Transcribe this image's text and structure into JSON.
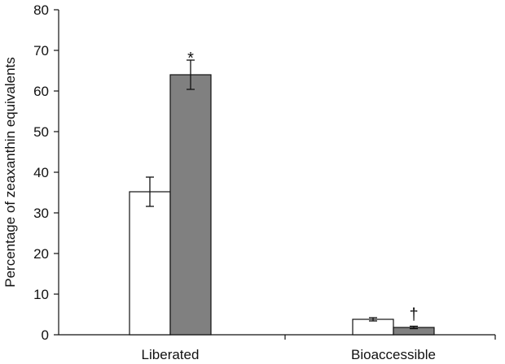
{
  "chart_data": {
    "type": "bar",
    "title": "",
    "xlabel": "",
    "ylabel": "Percentage of zeaxanthin equivalents",
    "ylim": [
      0,
      80
    ],
    "yticks": [
      0,
      10,
      20,
      30,
      40,
      50,
      60,
      70,
      80
    ],
    "grid": false,
    "legend": "none",
    "categories": [
      "Liberated",
      "Bioaccessible"
    ],
    "series": [
      {
        "fill": "#ffffff",
        "values": [
          35.2,
          3.8
        ],
        "errors": [
          3.6,
          0.4
        ]
      },
      {
        "fill": "#808080",
        "values": [
          64.0,
          1.8
        ],
        "errors": [
          3.6,
          0.3
        ]
      }
    ],
    "annotations": [
      {
        "text": "*",
        "category": 0,
        "series": 1
      },
      {
        "text": "†",
        "category": 1,
        "series": 1
      }
    ]
  }
}
